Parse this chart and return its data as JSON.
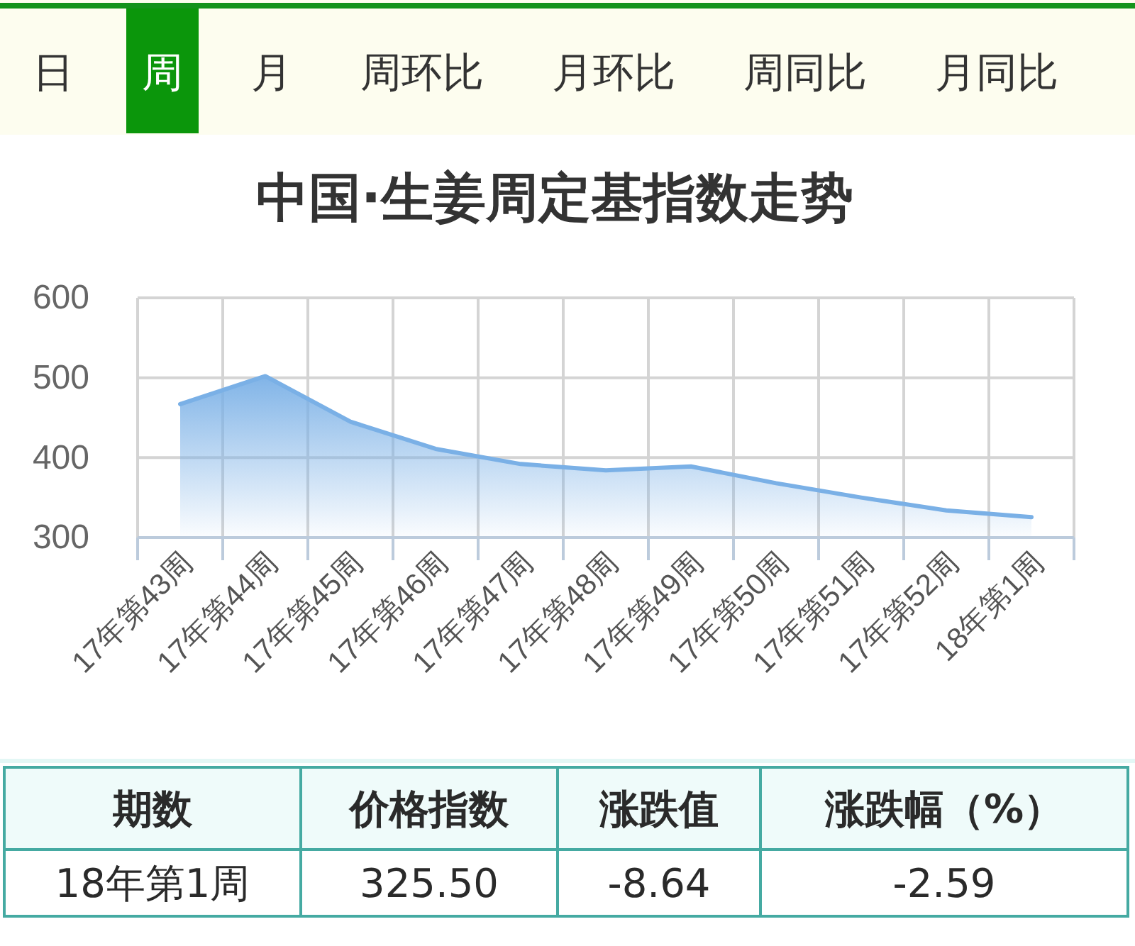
{
  "chart_data": [
    {
      "type": "other",
      "annotations": [
        "日",
        "周",
        "月",
        "周环比",
        "月环比",
        "周同比",
        "月同比"
      ]
    },
    {
      "type": "area",
      "title": "中国·生姜周定基指数走势",
      "categories": [
        "17年第43周",
        "17年第44周",
        "17年第45周",
        "17年第46周",
        "17年第47周",
        "17年第48周",
        "17年第49周",
        "17年第50周",
        "17年第51周",
        "17年第52周",
        "18年第1周"
      ],
      "values": [
        467,
        502,
        445,
        411,
        392,
        384,
        389,
        368,
        350,
        334,
        325.5
      ],
      "color": "#7ab0e6",
      "ylim": [
        300,
        600
      ],
      "yticks": [
        300,
        400,
        500,
        600
      ],
      "grid": true
    },
    {
      "type": "other",
      "annotations": [
        "期数",
        "价格指数",
        "涨跌值",
        "涨跌幅（%）",
        "18年第1周",
        "325.50",
        "-8.64",
        "-2.59"
      ]
    }
  ]
}
